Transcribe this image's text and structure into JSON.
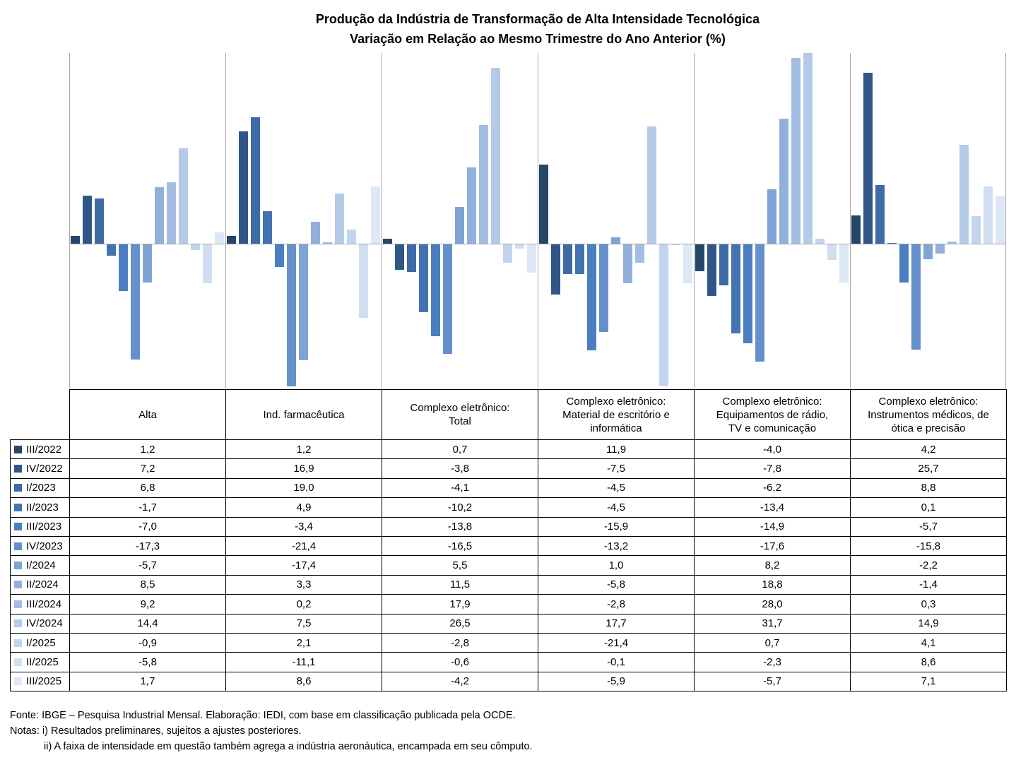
{
  "title": {
    "line1": "Produção da Indústria de Transformação de Alta Intensidade Tecnológica",
    "line2": "Variação em Relação ao Mesmo Trimestre do Ano Anterior (%)"
  },
  "chart_data": {
    "type": "bar",
    "title": "Produção da Indústria de Transformação de Alta Intensidade Tecnológica — Variação em Relação ao Mesmo Trimestre do Ano Anterior (%)",
    "categories": [
      "Alta",
      "Ind. farmacêutica",
      "Complexo eletrônico: Total",
      "Complexo eletrônico: Material de escritório e informática",
      "Complexo eletrônico: Equipamentos de rádio, TV e comunicação",
      "Complexo eletrônico: Instrumentos médicos, de ótica e precisão"
    ],
    "series": [
      {
        "name": "III/2022",
        "color": "#254569",
        "values": [
          1.2,
          1.2,
          0.7,
          11.9,
          -4.0,
          4.2
        ]
      },
      {
        "name": "IV/2022",
        "color": "#305687",
        "values": [
          7.2,
          16.9,
          -3.8,
          -7.5,
          -7.8,
          25.7
        ]
      },
      {
        "name": "I/2023",
        "color": "#3C6BA5",
        "values": [
          6.8,
          19.0,
          -4.1,
          -4.5,
          -6.2,
          8.8
        ]
      },
      {
        "name": "II/2023",
        "color": "#4373B1",
        "values": [
          -1.7,
          4.9,
          -10.2,
          -4.5,
          -13.4,
          0.1
        ]
      },
      {
        "name": "III/2023",
        "color": "#4B7EC0",
        "values": [
          -7.0,
          -3.4,
          -13.8,
          -15.9,
          -14.9,
          -5.7
        ]
      },
      {
        "name": "IV/2023",
        "color": "#6690CB",
        "values": [
          -17.3,
          -21.4,
          -16.5,
          -13.2,
          -17.6,
          -15.8
        ]
      },
      {
        "name": "I/2024",
        "color": "#80A3D5",
        "values": [
          -5.7,
          -17.4,
          5.5,
          1.0,
          8.2,
          -2.2
        ]
      },
      {
        "name": "II/2024",
        "color": "#93B0DC",
        "values": [
          8.5,
          3.3,
          11.5,
          -5.8,
          18.8,
          -1.4
        ]
      },
      {
        "name": "III/2024",
        "color": "#A4BEE3",
        "values": [
          9.2,
          0.2,
          17.9,
          -2.8,
          28.0,
          0.3
        ]
      },
      {
        "name": "IV/2024",
        "color": "#B4CAE9",
        "values": [
          14.4,
          7.5,
          26.5,
          17.7,
          31.7,
          14.9
        ]
      },
      {
        "name": "I/2025",
        "color": "#C3D4EE",
        "values": [
          -0.9,
          2.1,
          -2.8,
          -21.4,
          0.7,
          4.1
        ]
      },
      {
        "name": "II/2025",
        "color": "#D1DEF2",
        "values": [
          -5.8,
          -11.1,
          -0.6,
          -0.1,
          -2.3,
          8.6
        ]
      },
      {
        "name": "III/2025",
        "color": "#DEE7F5",
        "values": [
          1.7,
          8.6,
          -4.2,
          -5.9,
          -5.7,
          7.1
        ]
      }
    ],
    "ylim": [
      -21.8,
      28.7
    ],
    "clipping_note": "bars beyond ylim are clipped at plot edge (31.7 clipped at top)",
    "grid": "vertical panel separators between categories and horizontal zero line only",
    "gridline_color": "#A6A6A6",
    "legend_position": "legend keys shown as first column of data table below chart",
    "number_format": "decimal comma, one decimal place"
  },
  "footer": {
    "line1": "Fonte: IBGE – Pesquisa Industrial Mensal. Elaboração: IEDI, com base em classificação publicada pela OCDE.",
    "line2": "Notas: i) Resultados preliminares, sujeitos a ajustes posteriores.",
    "line3": "ii) A faixa de intensidade em questão também  agrega a indústria aeronáutica, encampada em seu cômputo."
  },
  "colors": {
    "background": "#FFFFFF",
    "text": "#000000",
    "table_border": "#000000",
    "gridline": "#A6A6A6"
  }
}
